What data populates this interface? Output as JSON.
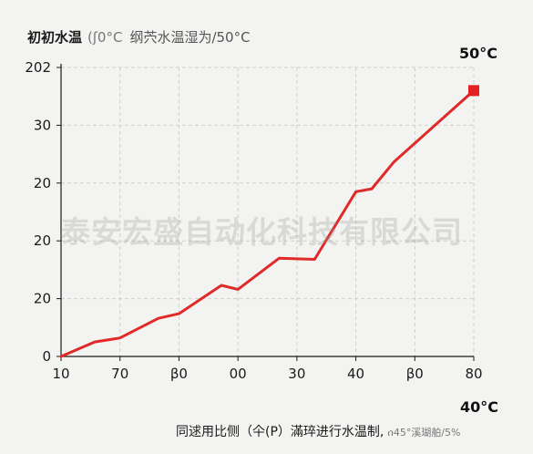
{
  "header": {
    "title_main": "初初水温",
    "title_mid": "(ʃ0°C",
    "title_sub": "纲茓水温湿为/50°C"
  },
  "labels": {
    "end_point": "50°C",
    "bottom_right": "40°C"
  },
  "footer": {
    "text": "同逑用比侧（仐(P）滿琗进行水温制,",
    "small": "ሰ45°溪瑚舶/5%"
  },
  "watermark": "泰安宏盛自动化科技有限公司",
  "colors": {
    "line": "#e02a2a",
    "end_marker": "#e52020",
    "grid": "#cfcfcf",
    "axis": "#1a1a1a",
    "background": "#f3f3f1"
  },
  "chart_data": {
    "type": "line",
    "title": "初初水温 (ʃ0°C 纲茓水温湿为/50°C",
    "xlabel": "",
    "ylabel": "",
    "x_tick_labels": [
      "10",
      "70",
      "β0",
      "00",
      "30",
      "40",
      "β0",
      "80"
    ],
    "y_tick_labels": [
      "0",
      "20",
      "20",
      "20",
      "30",
      "202"
    ],
    "grid": true,
    "legend": "none",
    "series": [
      {
        "values": [
          [
            0.0,
            0.0
          ],
          [
            0.57,
            0.25
          ],
          [
            1.0,
            0.32
          ],
          [
            1.65,
            0.66
          ],
          [
            2.0,
            0.74
          ],
          [
            2.72,
            1.23
          ],
          [
            3.0,
            1.16
          ],
          [
            3.7,
            1.7
          ],
          [
            4.3,
            1.68
          ],
          [
            5.0,
            2.85
          ],
          [
            5.27,
            2.9
          ],
          [
            5.65,
            3.37
          ],
          [
            7.0,
            4.6
          ]
        ]
      }
    ],
    "end_marker": true
  }
}
